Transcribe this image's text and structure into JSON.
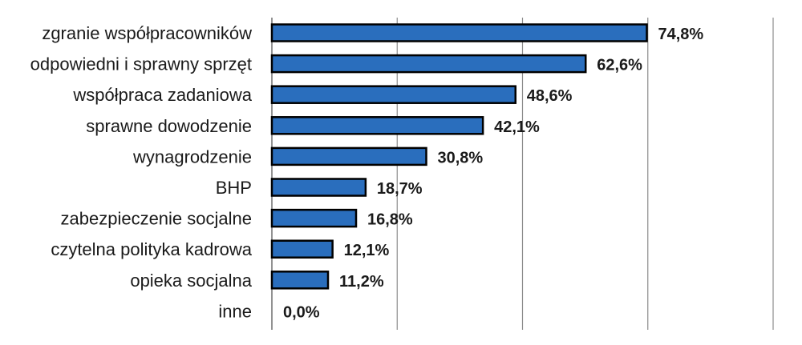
{
  "chart_data": {
    "type": "bar",
    "orientation": "horizontal",
    "categories": [
      "zgranie współpracowników",
      "odpowiedni i sprawny sprzęt",
      "współpraca zadaniowa",
      "sprawne dowodzenie",
      "wynagrodzenie",
      "BHP",
      "zabezpieczenie socjalne",
      "czytelna polityka kadrowa",
      "opieka socjalna",
      "inne"
    ],
    "values": [
      74.8,
      62.6,
      48.6,
      42.1,
      30.8,
      18.7,
      16.8,
      12.1,
      11.2,
      0.0
    ],
    "value_labels": [
      "74,8%",
      "62,6%",
      "48,6%",
      "42,1%",
      "30,8%",
      "18,7%",
      "16,8%",
      "12,1%",
      "11,2%",
      "0,0%"
    ],
    "xlim": [
      0,
      100
    ],
    "x_gridlines": [
      0,
      25,
      50,
      75,
      100
    ],
    "grid": true,
    "legend": "none",
    "bar_color": "#2a6ebd",
    "title": "",
    "xlabel": "",
    "ylabel": ""
  }
}
